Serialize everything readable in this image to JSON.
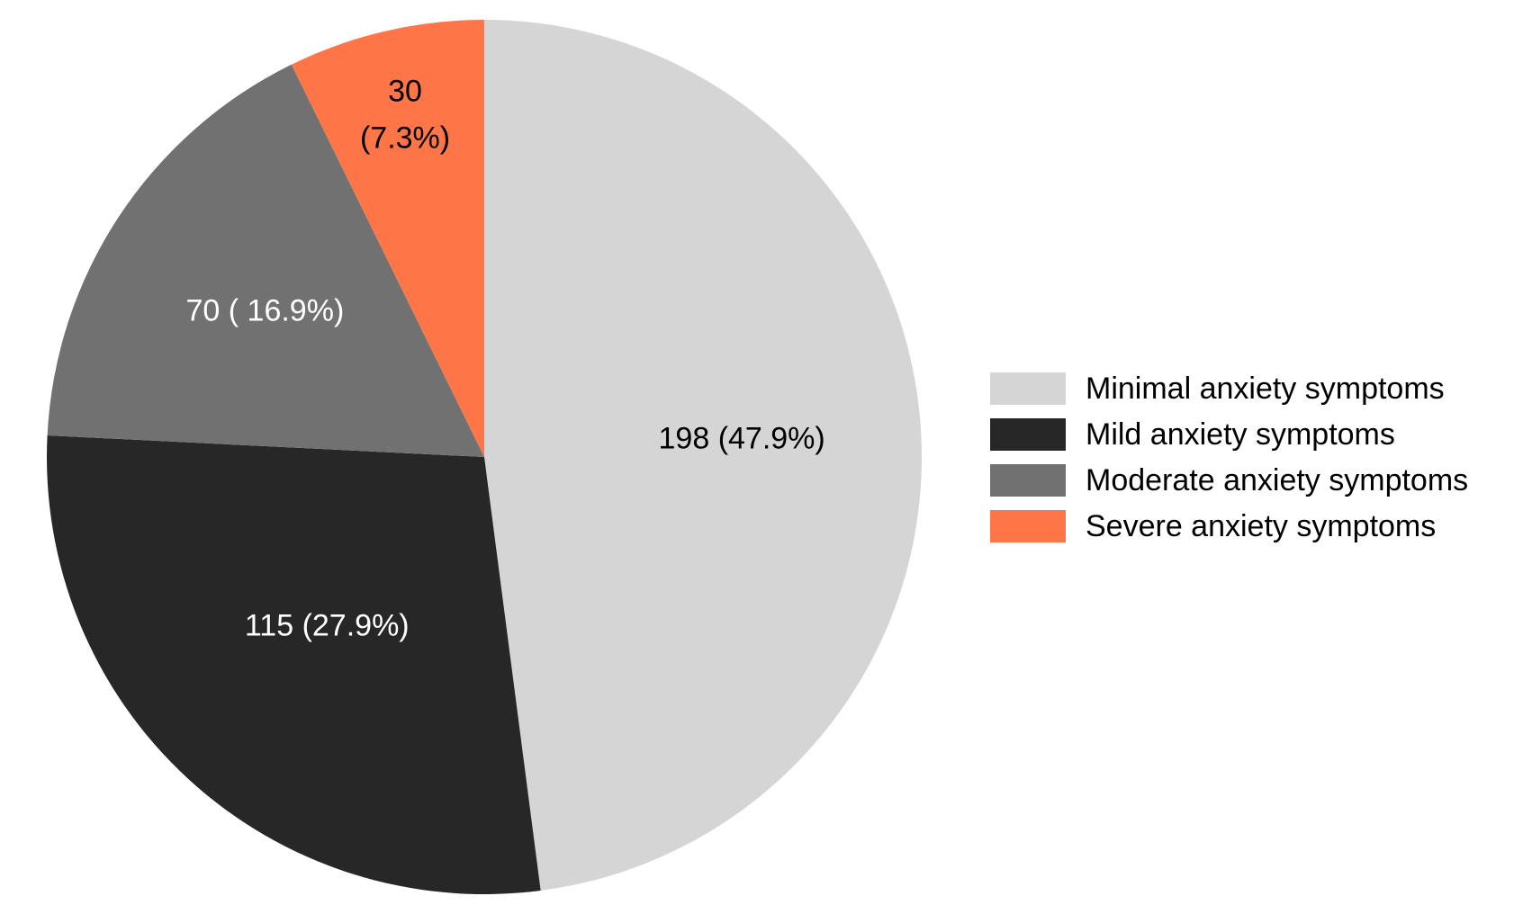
{
  "chart_data": {
    "type": "pie",
    "slices": [
      {
        "name": "Minimal anxiety symptoms",
        "value": 198,
        "percent": 47.9,
        "label_lines": [
          "198 (47.9%)"
        ],
        "color": "#d5d5d5",
        "label_color": "#000000"
      },
      {
        "name": "Mild anxiety symptoms",
        "value": 115,
        "percent": 27.9,
        "label_lines": [
          "115 (27.9%)"
        ],
        "color": "#272727",
        "label_color": "#ffffff"
      },
      {
        "name": "Moderate anxiety symptoms",
        "value": 70,
        "percent": 16.9,
        "label_lines": [
          "70 ( 16.9%)"
        ],
        "color": "#717171",
        "label_color": "#ffffff"
      },
      {
        "name": "Severe anxiety symptoms",
        "value": 30,
        "percent": 7.3,
        "label_lines": [
          "30",
          "(7.3%)"
        ],
        "color": "#fe7547",
        "label_color": "#000000"
      }
    ],
    "start": "12 o'clock",
    "direction": "clockwise",
    "legend": {
      "placement": "right",
      "entries": [
        "Minimal anxiety symptoms",
        "Mild anxiety symptoms",
        "Moderate anxiety symptoms",
        "Severe anxiety symptoms"
      ]
    }
  }
}
